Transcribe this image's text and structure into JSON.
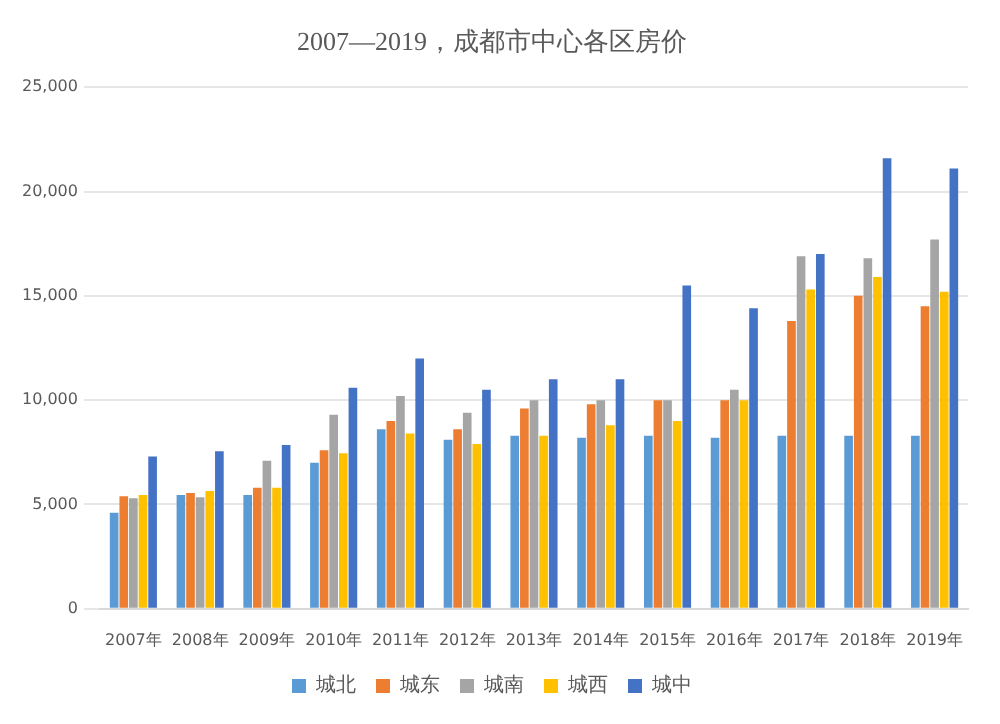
{
  "chart_data": {
    "type": "bar",
    "title": "2007—2019，成都市中心各区房价",
    "categories": [
      "2007年",
      "2008年",
      "2009年",
      "2010年",
      "2011年",
      "2012年",
      "2013年",
      "2014年",
      "2015年",
      "2016年",
      "2017年",
      "2018年",
      "2019年"
    ],
    "series": [
      {
        "name": "城北",
        "color": "#5b9bd5",
        "values": [
          4600,
          5450,
          5450,
          7000,
          8600,
          8100,
          8300,
          8200,
          8300,
          8200,
          8300,
          8300,
          8300
        ]
      },
      {
        "name": "城东",
        "color": "#ed7d31",
        "values": [
          5400,
          5550,
          5800,
          7600,
          9000,
          8600,
          9600,
          9800,
          10000,
          10000,
          13800,
          15000,
          14500
        ]
      },
      {
        "name": "城南",
        "color": "#a5a5a5",
        "values": [
          5300,
          5350,
          7100,
          9300,
          10200,
          9400,
          10000,
          10000,
          10000,
          10500,
          16900,
          16800,
          17700
        ]
      },
      {
        "name": "城西",
        "color": "#ffc000",
        "values": [
          5450,
          5650,
          5800,
          7450,
          8400,
          7900,
          8300,
          8800,
          9000,
          10000,
          15300,
          15900,
          15200
        ]
      },
      {
        "name": "城中",
        "color": "#4472c4",
        "values": [
          7300,
          7550,
          7850,
          10600,
          12000,
          10500,
          11000,
          11000,
          15500,
          14400,
          17000,
          21600,
          21100
        ]
      }
    ],
    "ylim": [
      0,
      25000
    ],
    "yticks": [
      0,
      {
        "value": 5000,
        "label": "5,000"
      },
      {
        "value": 10000,
        "label": "10,000"
      },
      {
        "value": 15000,
        "label": "15,000"
      },
      {
        "value": 20000,
        "label": "20,000"
      },
      {
        "value": 25000,
        "label": "25,000"
      }
    ],
    "grid": "y",
    "legend": "bottom"
  }
}
